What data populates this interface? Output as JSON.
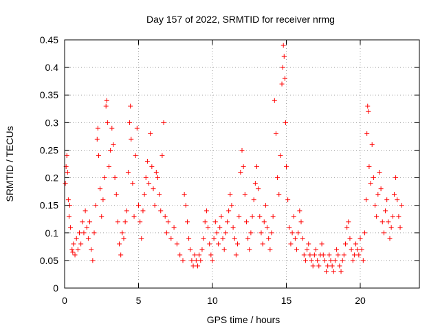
{
  "chart_data": {
    "type": "scatter",
    "title": "Day 157 of 2022, SRMTID for receiver nrmg",
    "xlabel": "GPS time / hours",
    "ylabel": "SRMTID / TECUs",
    "xlim": [
      0,
      24
    ],
    "ylim": [
      0,
      0.45
    ],
    "xticks": [
      0,
      5,
      10,
      15,
      20
    ],
    "xtick_labels": [
      "0",
      "5",
      "10",
      "15",
      "20"
    ],
    "yticks": [
      0,
      0.05,
      0.1,
      0.15,
      0.2,
      0.25,
      0.3,
      0.35,
      0.4,
      0.45
    ],
    "ytick_labels": [
      "0",
      "0.05",
      "0.1",
      "0.15",
      "0.2",
      "0.25",
      "0.3",
      "0.35",
      "0.4",
      "0.45"
    ],
    "grid": true,
    "marker": "+",
    "series": [
      {
        "name": "SRMTID",
        "color": "#ff0000",
        "points": [
          [
            0.05,
            0.19
          ],
          [
            0.1,
            0.22
          ],
          [
            0.15,
            0.24
          ],
          [
            0.2,
            0.21
          ],
          [
            0.25,
            0.16
          ],
          [
            0.3,
            0.13
          ],
          [
            0.35,
            0.15
          ],
          [
            0.4,
            0.11
          ],
          [
            0.5,
            0.07
          ],
          [
            0.55,
            0.065
          ],
          [
            0.6,
            0.08
          ],
          [
            0.7,
            0.06
          ],
          [
            0.8,
            0.09
          ],
          [
            0.9,
            0.07
          ],
          [
            1.0,
            0.1
          ],
          [
            1.1,
            0.08
          ],
          [
            1.2,
            0.12
          ],
          [
            1.3,
            0.1
          ],
          [
            1.4,
            0.14
          ],
          [
            1.5,
            0.11
          ],
          [
            1.6,
            0.09
          ],
          [
            1.7,
            0.12
          ],
          [
            1.8,
            0.07
          ],
          [
            1.9,
            0.05
          ],
          [
            2.0,
            0.1
          ],
          [
            2.1,
            0.15
          ],
          [
            2.2,
            0.27
          ],
          [
            2.25,
            0.29
          ],
          [
            2.3,
            0.24
          ],
          [
            2.4,
            0.18
          ],
          [
            2.5,
            0.13
          ],
          [
            2.6,
            0.16
          ],
          [
            2.7,
            0.2
          ],
          [
            2.8,
            0.33
          ],
          [
            2.85,
            0.34
          ],
          [
            2.9,
            0.3
          ],
          [
            3.0,
            0.22
          ],
          [
            3.1,
            0.25
          ],
          [
            3.2,
            0.29
          ],
          [
            3.3,
            0.26
          ],
          [
            3.4,
            0.2
          ],
          [
            3.5,
            0.17
          ],
          [
            3.6,
            0.12
          ],
          [
            3.7,
            0.08
          ],
          [
            3.8,
            0.06
          ],
          [
            3.9,
            0.1
          ],
          [
            4.0,
            0.09
          ],
          [
            4.1,
            0.12
          ],
          [
            4.2,
            0.14
          ],
          [
            4.3,
            0.21
          ],
          [
            4.4,
            0.3
          ],
          [
            4.45,
            0.33
          ],
          [
            4.5,
            0.27
          ],
          [
            4.6,
            0.19
          ],
          [
            4.7,
            0.13
          ],
          [
            4.8,
            0.24
          ],
          [
            4.9,
            0.29
          ],
          [
            5.0,
            0.15
          ],
          [
            5.1,
            0.12
          ],
          [
            5.2,
            0.09
          ],
          [
            5.3,
            0.14
          ],
          [
            5.4,
            0.17
          ],
          [
            5.5,
            0.2
          ],
          [
            5.6,
            0.23
          ],
          [
            5.7,
            0.19
          ],
          [
            5.8,
            0.28
          ],
          [
            5.9,
            0.22
          ],
          [
            6.0,
            0.18
          ],
          [
            6.1,
            0.15
          ],
          [
            6.2,
            0.21
          ],
          [
            6.3,
            0.2
          ],
          [
            6.4,
            0.17
          ],
          [
            6.5,
            0.14
          ],
          [
            6.6,
            0.24
          ],
          [
            6.7,
            0.3
          ],
          [
            6.8,
            0.13
          ],
          [
            6.9,
            0.1
          ],
          [
            7.0,
            0.12
          ],
          [
            7.2,
            0.09
          ],
          [
            7.4,
            0.11
          ],
          [
            7.6,
            0.08
          ],
          [
            7.8,
            0.06
          ],
          [
            8.0,
            0.05
          ],
          [
            8.1,
            0.17
          ],
          [
            8.2,
            0.15
          ],
          [
            8.3,
            0.12
          ],
          [
            8.4,
            0.09
          ],
          [
            8.5,
            0.07
          ],
          [
            8.6,
            0.05
          ],
          [
            8.7,
            0.04
          ],
          [
            8.8,
            0.06
          ],
          [
            8.9,
            0.05
          ],
          [
            9.0,
            0.04
          ],
          [
            9.1,
            0.06
          ],
          [
            9.2,
            0.05
          ],
          [
            9.3,
            0.07
          ],
          [
            9.4,
            0.09
          ],
          [
            9.5,
            0.12
          ],
          [
            9.6,
            0.14
          ],
          [
            9.7,
            0.11
          ],
          [
            9.8,
            0.08
          ],
          [
            9.9,
            0.06
          ],
          [
            10.0,
            0.05
          ],
          [
            10.1,
            0.09
          ],
          [
            10.2,
            0.12
          ],
          [
            10.3,
            0.1
          ],
          [
            10.4,
            0.08
          ],
          [
            10.5,
            0.11
          ],
          [
            10.6,
            0.13
          ],
          [
            10.7,
            0.09
          ],
          [
            10.8,
            0.07
          ],
          [
            10.9,
            0.1
          ],
          [
            11.0,
            0.12
          ],
          [
            11.1,
            0.14
          ],
          [
            11.2,
            0.17
          ],
          [
            11.3,
            0.15
          ],
          [
            11.4,
            0.11
          ],
          [
            11.5,
            0.09
          ],
          [
            11.6,
            0.06
          ],
          [
            11.7,
            0.08
          ],
          [
            11.8,
            0.13
          ],
          [
            11.9,
            0.21
          ],
          [
            12.0,
            0.25
          ],
          [
            12.1,
            0.22
          ],
          [
            12.2,
            0.17
          ],
          [
            12.3,
            0.12
          ],
          [
            12.4,
            0.09
          ],
          [
            12.5,
            0.07
          ],
          [
            12.6,
            0.1
          ],
          [
            12.7,
            0.13
          ],
          [
            12.8,
            0.16
          ],
          [
            12.9,
            0.19
          ],
          [
            13.0,
            0.22
          ],
          [
            13.1,
            0.18
          ],
          [
            13.2,
            0.13
          ],
          [
            13.3,
            0.1
          ],
          [
            13.4,
            0.08
          ],
          [
            13.5,
            0.12
          ],
          [
            13.6,
            0.15
          ],
          [
            13.7,
            0.11
          ],
          [
            13.8,
            0.09
          ],
          [
            13.9,
            0.07
          ],
          [
            14.0,
            0.1
          ],
          [
            14.1,
            0.13
          ],
          [
            14.2,
            0.34
          ],
          [
            14.3,
            0.28
          ],
          [
            14.4,
            0.2
          ],
          [
            14.5,
            0.17
          ],
          [
            14.6,
            0.24
          ],
          [
            14.7,
            0.37
          ],
          [
            14.75,
            0.4
          ],
          [
            14.8,
            0.44
          ],
          [
            14.85,
            0.42
          ],
          [
            14.9,
            0.38
          ],
          [
            14.95,
            0.3
          ],
          [
            15.0,
            0.22
          ],
          [
            15.1,
            0.16
          ],
          [
            15.2,
            0.11
          ],
          [
            15.3,
            0.08
          ],
          [
            15.4,
            0.1
          ],
          [
            15.5,
            0.13
          ],
          [
            15.6,
            0.09
          ],
          [
            15.7,
            0.07
          ],
          [
            15.8,
            0.1
          ],
          [
            15.9,
            0.14
          ],
          [
            16.0,
            0.12
          ],
          [
            16.1,
            0.09
          ],
          [
            16.2,
            0.06
          ],
          [
            16.3,
            0.05
          ],
          [
            16.4,
            0.07
          ],
          [
            16.5,
            0.08
          ],
          [
            16.6,
            0.06
          ],
          [
            16.7,
            0.05
          ],
          [
            16.8,
            0.04
          ],
          [
            16.9,
            0.06
          ],
          [
            17.0,
            0.07
          ],
          [
            17.1,
            0.05
          ],
          [
            17.2,
            0.04
          ],
          [
            17.3,
            0.06
          ],
          [
            17.4,
            0.08
          ],
          [
            17.5,
            0.06
          ],
          [
            17.6,
            0.05
          ],
          [
            17.7,
            0.03
          ],
          [
            17.8,
            0.04
          ],
          [
            17.9,
            0.06
          ],
          [
            18.0,
            0.05
          ],
          [
            18.1,
            0.04
          ],
          [
            18.2,
            0.03
          ],
          [
            18.3,
            0.05
          ],
          [
            18.4,
            0.07
          ],
          [
            18.5,
            0.06
          ],
          [
            18.6,
            0.04
          ],
          [
            18.7,
            0.03
          ],
          [
            18.8,
            0.05
          ],
          [
            18.9,
            0.06
          ],
          [
            19.0,
            0.08
          ],
          [
            19.1,
            0.11
          ],
          [
            19.2,
            0.12
          ],
          [
            19.3,
            0.09
          ],
          [
            19.4,
            0.07
          ],
          [
            19.5,
            0.05
          ],
          [
            19.6,
            0.06
          ],
          [
            19.7,
            0.08
          ],
          [
            19.8,
            0.07
          ],
          [
            19.9,
            0.06
          ],
          [
            20.0,
            0.09
          ],
          [
            20.1,
            0.07
          ],
          [
            20.2,
            0.05
          ],
          [
            20.3,
            0.1
          ],
          [
            20.4,
            0.16
          ],
          [
            20.45,
            0.28
          ],
          [
            20.5,
            0.33
          ],
          [
            20.55,
            0.32
          ],
          [
            20.6,
            0.22
          ],
          [
            20.7,
            0.19
          ],
          [
            20.8,
            0.26
          ],
          [
            20.9,
            0.2
          ],
          [
            21.0,
            0.15
          ],
          [
            21.1,
            0.13
          ],
          [
            21.2,
            0.17
          ],
          [
            21.3,
            0.21
          ],
          [
            21.4,
            0.18
          ],
          [
            21.5,
            0.12
          ],
          [
            21.6,
            0.1
          ],
          [
            21.7,
            0.14
          ],
          [
            21.8,
            0.16
          ],
          [
            21.9,
            0.12
          ],
          [
            22.0,
            0.09
          ],
          [
            22.1,
            0.11
          ],
          [
            22.2,
            0.13
          ],
          [
            22.3,
            0.17
          ],
          [
            22.4,
            0.2
          ],
          [
            22.5,
            0.16
          ],
          [
            22.6,
            0.13
          ],
          [
            22.7,
            0.11
          ],
          [
            22.8,
            0.15
          ]
        ]
      }
    ]
  }
}
